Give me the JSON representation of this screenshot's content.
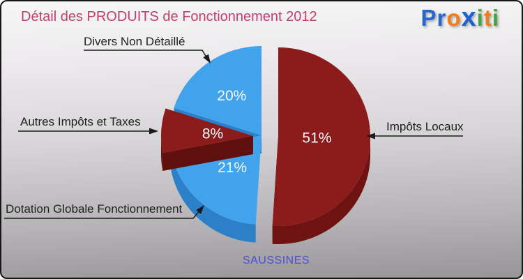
{
  "header": {
    "title": "Détail des PRODUITS de Fonctionnement 2012"
  },
  "logo": {
    "text": "Proxiti",
    "letters": [
      {
        "char": "P",
        "color": "#2668cb"
      },
      {
        "char": "r",
        "color": "#2668cb"
      },
      {
        "char": "o",
        "color": "#f07d16"
      },
      {
        "char": "x",
        "color": "#1e63cc"
      },
      {
        "char": "i",
        "color": "#44a344"
      },
      {
        "char": "t",
        "color": "#f07d16"
      },
      {
        "char": "i",
        "color": "#44a344"
      }
    ]
  },
  "chart_data": {
    "type": "pie",
    "style": "3d-exploded",
    "title": "Détail des PRODUITS de Fonctionnement 2012",
    "start_angle_deg": 0,
    "direction": "clockwise",
    "percent_text_color": "#f2f8fd",
    "slices": [
      {
        "label": "Impôts Locaux",
        "value": 51,
        "pct_label": "51%",
        "color": "#8c1b1b",
        "side_color": "#6e1212",
        "exploded": true
      },
      {
        "label": "Dotation Globale Fonctionnement",
        "value": 21,
        "pct_label": "21%",
        "color": "#41a3ec",
        "side_color": "#2b80c8",
        "exploded": false
      },
      {
        "label": "Autres Impôts et Taxes",
        "value": 8,
        "pct_label": "8%",
        "color": "#8c1b1b",
        "side_color": "#611010",
        "exploded": true
      },
      {
        "label": "Divers Non Détaillé",
        "value": 20,
        "pct_label": "20%",
        "color": "#41a3ec",
        "side_color": "#2b80c8",
        "exploded": false
      }
    ]
  },
  "footer": {
    "commune": "SAUSSINES"
  }
}
